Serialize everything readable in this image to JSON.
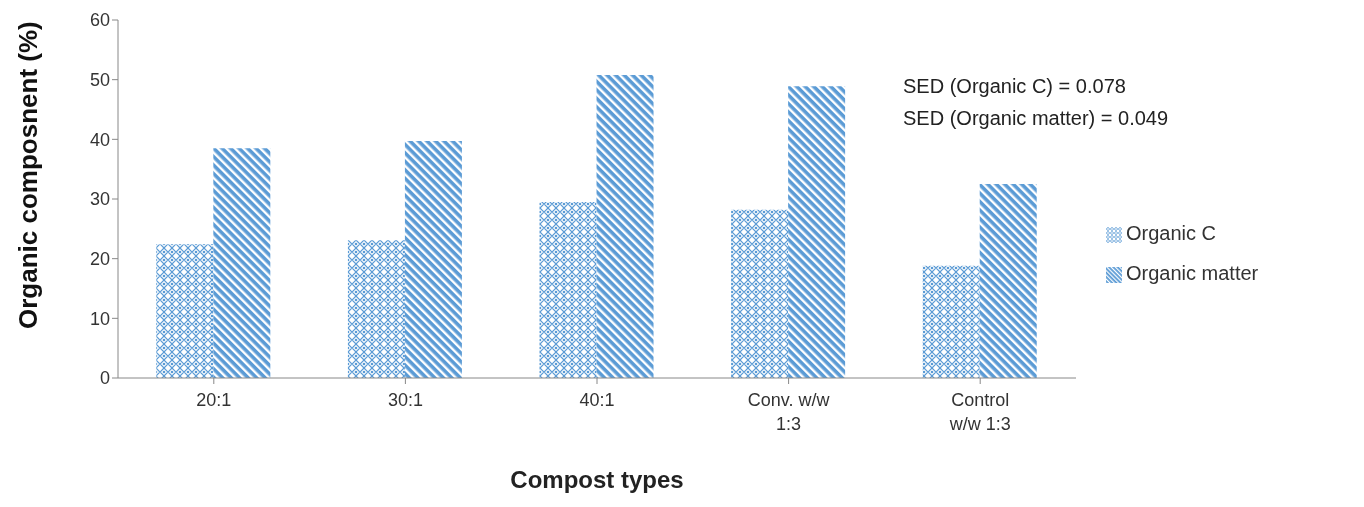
{
  "chart_data": {
    "type": "bar",
    "xlabel": "Compost types",
    "ylabel": "Organic composnent (%)",
    "categories": [
      "20:1",
      "30:1",
      "40:1",
      "Conv. w/w 1:3",
      "Control w/w 1:3"
    ],
    "series": [
      {
        "name": "Organic C",
        "color": "#5b9bd5",
        "values": [
          22.4,
          23.1,
          29.5,
          28.2,
          18.8
        ]
      },
      {
        "name": "Organic matter",
        "color": "#5b9bd5",
        "values": [
          38.5,
          39.7,
          50.8,
          48.9,
          32.5
        ]
      }
    ],
    "ylim": [
      0,
      60
    ],
    "yticks": [
      0,
      10,
      20,
      30,
      40,
      50,
      60
    ],
    "grid": false,
    "legend": "right",
    "annotations": [
      "SED (Organic C) = 0.078",
      "SED (Organic matter) = 0.049"
    ]
  }
}
